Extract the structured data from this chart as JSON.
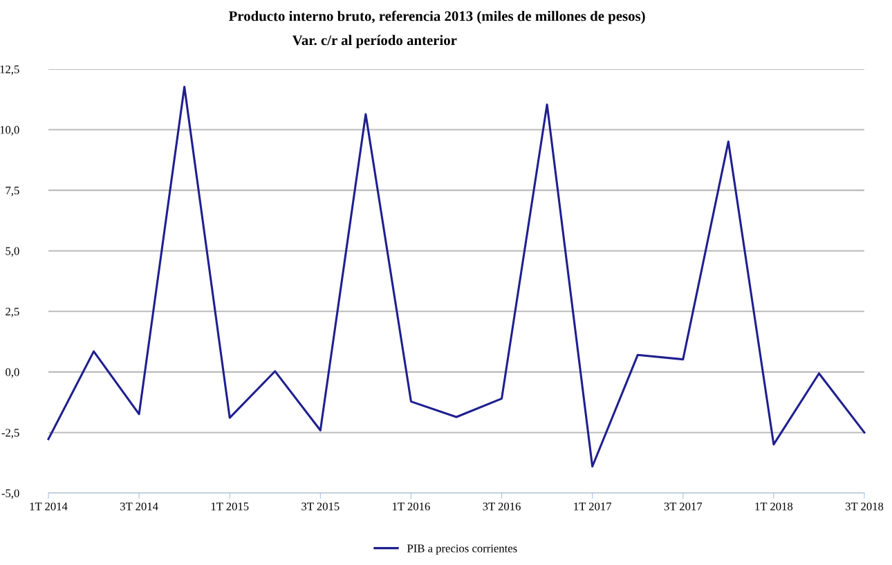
{
  "chart_data": {
    "type": "line",
    "title": "Producto interno bruto, referencia 2013 (miles de millones de pesos)",
    "subtitle": "Var. c/r al período anterior",
    "categories": [
      "1T 2014",
      null,
      "3T 2014",
      null,
      "1T 2015",
      null,
      "3T 2015",
      null,
      "1T 2016",
      null,
      "3T 2016",
      null,
      "1T 2017",
      null,
      "3T 2017",
      null,
      "1T 2018",
      null,
      "3T 2018"
    ],
    "series": [
      {
        "name": "PIB a precios corrientes",
        "color": "#1f1f8f",
        "values": [
          -2.77,
          0.85,
          -1.74,
          11.77,
          -1.89,
          0.03,
          -2.41,
          10.64,
          -1.22,
          -1.86,
          -1.1,
          11.04,
          -3.9,
          0.7,
          0.52,
          9.51,
          -2.99,
          -0.06,
          -2.5
        ]
      }
    ],
    "ylim": [
      -5,
      12.5
    ],
    "yticks": [
      {
        "value": -5,
        "label": "-5,0"
      },
      {
        "value": -2.5,
        "label": "-2,5"
      },
      {
        "value": 0,
        "label": "0,0"
      },
      {
        "value": 2.5,
        "label": "2,5"
      },
      {
        "value": 5,
        "label": "5,0"
      },
      {
        "value": 7.5,
        "label": "7,5"
      },
      {
        "value": 10,
        "label": "10,0"
      },
      {
        "value": 12.5,
        "label": "12,5"
      }
    ],
    "grid": "y",
    "legend": "bottom",
    "marker": "none",
    "line_style": "solid"
  }
}
